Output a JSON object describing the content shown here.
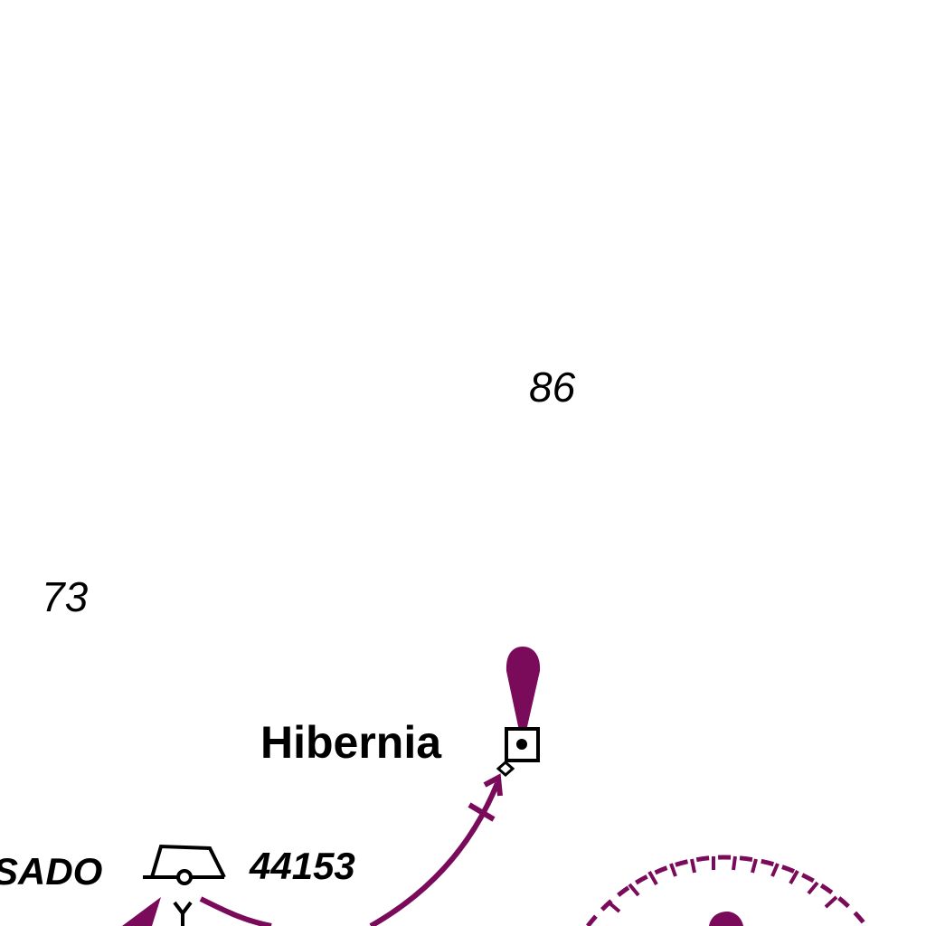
{
  "map": {
    "soundings": [
      "86",
      "73"
    ],
    "platform_name": "Hibernia",
    "partial_label": "SADO",
    "buoy_number": "44153",
    "colors": {
      "magenta": "#7a0a5a",
      "ink": "#000000",
      "background": "#ffffff"
    },
    "symbols": [
      "platform-icon",
      "light-flare-icon",
      "buoy-icon",
      "anchor-ring-icon",
      "arrow-icon"
    ]
  }
}
